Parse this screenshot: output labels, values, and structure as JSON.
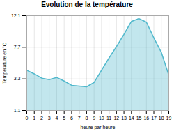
{
  "chart_data": {
    "type": "area",
    "title": "Evolution de la température",
    "xlabel": "heure par heure",
    "ylabel": "Température en °C",
    "x": [
      0,
      1,
      2,
      3,
      4,
      5,
      6,
      7,
      8,
      9,
      10,
      11,
      12,
      13,
      14,
      15,
      16,
      17,
      18,
      19
    ],
    "values": [
      4.5,
      4.0,
      3.4,
      3.2,
      3.5,
      3.0,
      2.4,
      2.3,
      2.2,
      2.8,
      4.5,
      6.2,
      7.8,
      9.5,
      11.3,
      11.7,
      11.2,
      9.0,
      7.0,
      3.8
    ],
    "color": "#50b8cc",
    "xlim": [
      0,
      19
    ],
    "ylim": [
      -1.1,
      12.1
    ],
    "xticks": [
      0,
      1,
      2,
      3,
      4,
      5,
      6,
      7,
      8,
      9,
      10,
      11,
      12,
      13,
      14,
      15,
      16,
      17,
      18,
      19
    ],
    "yticks": [
      -1.1,
      3.3,
      7.7,
      12.1
    ],
    "grid": true
  }
}
